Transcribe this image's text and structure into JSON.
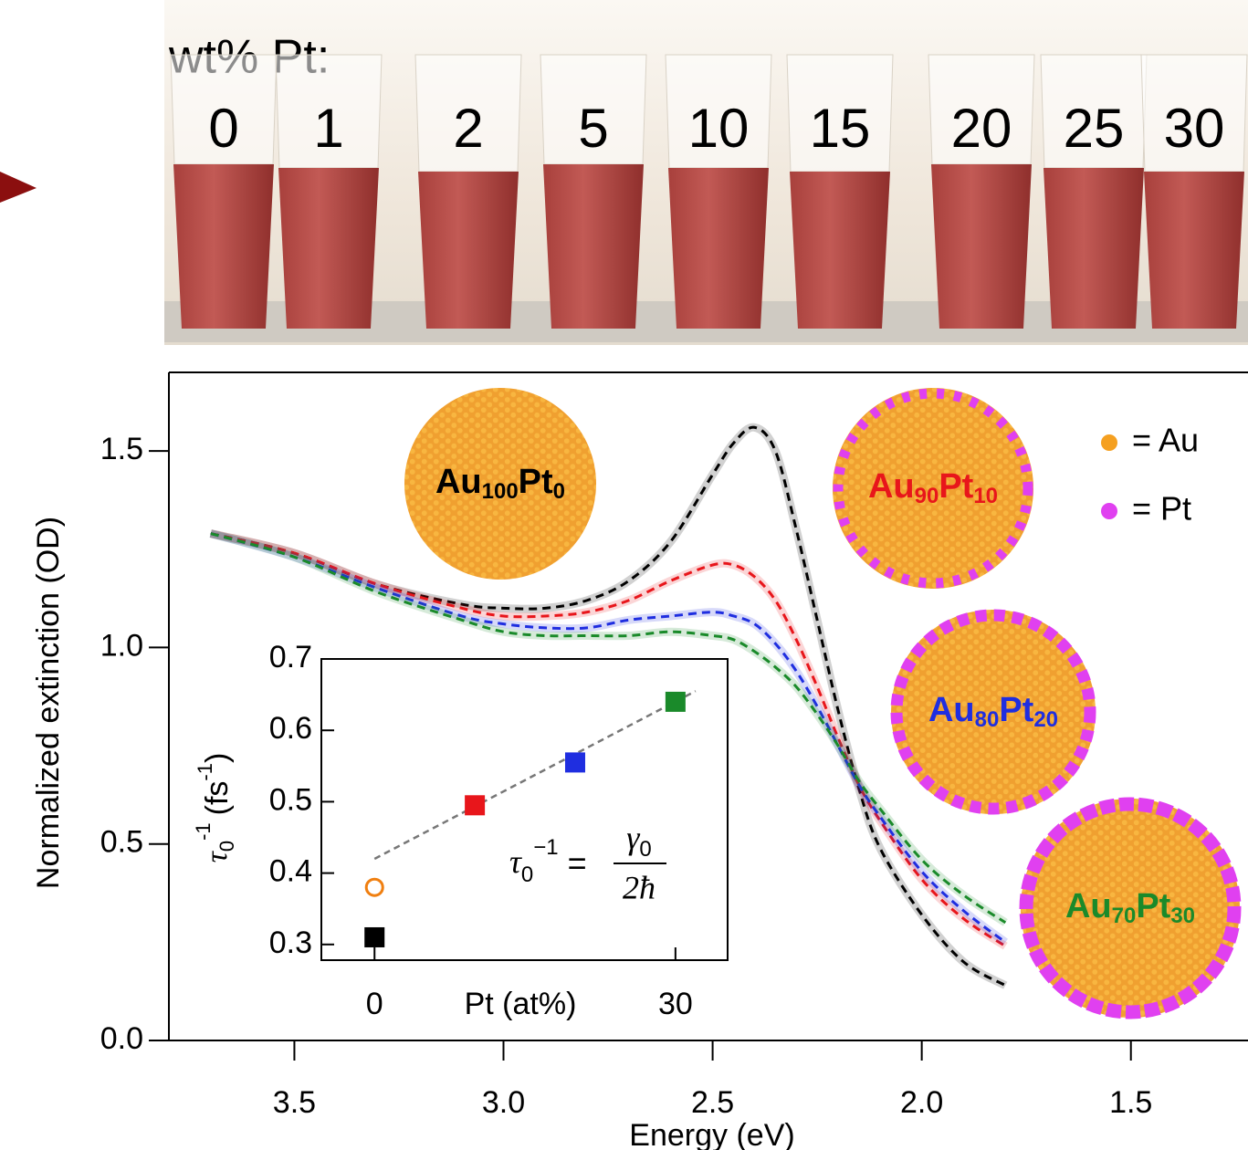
{
  "photo": {
    "label": "wt% Pt:",
    "samples": [
      "0",
      "1",
      "2",
      "5",
      "10",
      "15",
      "20",
      "25",
      "30"
    ]
  },
  "chart_data": [
    {
      "type": "line",
      "xlabel": "Energy (eV)",
      "ylabel": "Normalized extinction (OD)",
      "xlim": [
        3.8,
        1.22
      ],
      "ylim": [
        0,
        1.7
      ],
      "xticks": [
        3.5,
        {
          "value": 3,
          "label": "3.0"
        },
        2.5,
        {
          "value": 2,
          "label": "2.0"
        },
        1.5
      ],
      "yticks": [
        {
          "value": 0,
          "label": "0.0"
        },
        0.5,
        {
          "value": 1,
          "label": "1.0"
        },
        1.5
      ],
      "x": [
        3.7,
        3.5,
        3.3,
        3.1,
        3.0,
        2.9,
        2.8,
        2.7,
        2.6,
        2.5,
        2.45,
        2.4,
        2.35,
        2.3,
        2.25,
        2.2,
        2.15,
        2.1,
        2.0,
        1.9,
        1.8
      ],
      "series": [
        {
          "color": "#000000",
          "values": [
            1.29,
            1.24,
            1.16,
            1.11,
            1.1,
            1.1,
            1.12,
            1.17,
            1.27,
            1.44,
            1.52,
            1.56,
            1.5,
            1.3,
            1.07,
            0.84,
            0.64,
            0.49,
            0.32,
            0.2,
            0.14
          ]
        },
        {
          "color": "#e8161b",
          "values": [
            1.29,
            1.24,
            1.16,
            1.1,
            1.08,
            1.08,
            1.09,
            1.12,
            1.17,
            1.21,
            1.21,
            1.18,
            1.12,
            1.02,
            0.9,
            0.77,
            0.65,
            0.56,
            0.41,
            0.31,
            0.24
          ]
        },
        {
          "color": "#1f2ee0",
          "values": [
            1.29,
            1.23,
            1.15,
            1.08,
            1.06,
            1.05,
            1.05,
            1.07,
            1.08,
            1.09,
            1.08,
            1.06,
            1.01,
            0.94,
            0.85,
            0.75,
            0.65,
            0.57,
            0.43,
            0.33,
            0.25
          ]
        },
        {
          "color": "#1a8a2a",
          "values": [
            1.29,
            1.23,
            1.14,
            1.07,
            1.04,
            1.03,
            1.03,
            1.03,
            1.04,
            1.03,
            1.02,
            0.99,
            0.95,
            0.9,
            0.83,
            0.75,
            0.66,
            0.59,
            0.46,
            0.37,
            0.3
          ]
        }
      ]
    },
    {
      "type": "scatter",
      "xlabel": "Pt (at%)",
      "ylabel": {
        "symbol": "τ",
        "sub": "0",
        "sup": "-1",
        "unit": "(fs",
        "unit_sup": "-1",
        "close": ")"
      },
      "xlim": [
        -5.3,
        35.2
      ],
      "ylim": [
        0.278,
        0.7
      ],
      "xticks": [
        0,
        30
      ],
      "yticks": [
        0.3,
        0.4,
        0.5,
        0.6,
        0.7
      ],
      "x": [
        0,
        0,
        10,
        20,
        30
      ],
      "values": [
        0.31,
        0.38,
        0.495,
        0.555,
        0.64
      ],
      "colors": [
        "#000000",
        "#f07f10",
        "#e8161b",
        "#1f2ee0",
        "#1a8a2a"
      ],
      "markers": [
        "square",
        "open-circle",
        "square",
        "square",
        "square"
      ],
      "fit": {
        "x": [
          0,
          32
        ],
        "values": [
          0.42,
          0.655
        ],
        "color": "#777777"
      },
      "equation": {
        "lhs": "τ",
        "lhs_sub": "0",
        "lhs_sup": "−1",
        "eq": "=",
        "num": "γ",
        "num_sub": "0",
        "den": "2ħ"
      }
    }
  ],
  "particles": [
    {
      "parts": [
        "Au",
        "100",
        "Pt",
        "0"
      ],
      "color": "#000000"
    },
    {
      "parts": [
        "Au",
        "90",
        "Pt",
        "10"
      ],
      "color": "#e8161b"
    },
    {
      "parts": [
        "Au",
        "80",
        "Pt",
        "20"
      ],
      "color": "#1f2ee0"
    },
    {
      "parts": [
        "Au",
        "70",
        "Pt",
        "30"
      ],
      "color": "#1a8a2a"
    }
  ],
  "atom_legend": [
    {
      "label": "= Au",
      "color": "#f5a020"
    },
    {
      "label": "= Pt",
      "color": "#e040f0"
    }
  ]
}
